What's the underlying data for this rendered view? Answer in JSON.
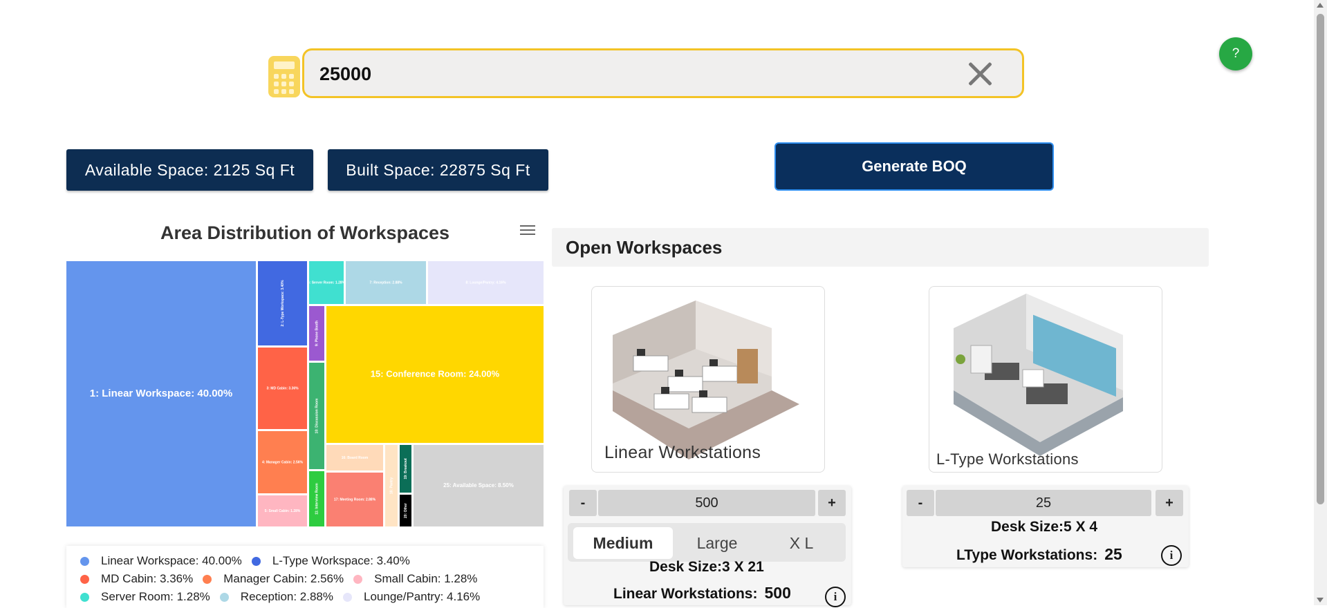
{
  "search": {
    "value": "25000"
  },
  "help": {
    "label": "?"
  },
  "stats": {
    "available": "Available Space: 2125 Sq Ft",
    "built": "Built Space: 22875 Sq Ft"
  },
  "actions": {
    "generate": "Generate BOQ"
  },
  "chart": {
    "title": "Area Distribution of Workspaces"
  },
  "chart_data": {
    "type": "treemap",
    "title": "Area Distribution of Workspaces",
    "series": [
      {
        "label": "1: Linear Workspace: 40.00%",
        "name": "Linear Workspace",
        "value": 40.0,
        "color": "#6495ed"
      },
      {
        "label": "2: L-Type Workspace: 3.40%",
        "name": "L-Type Workspace",
        "value": 3.4,
        "color": "#4169e1"
      },
      {
        "label": "3: MD Cabin: 3.36%",
        "name": "MD Cabin",
        "value": 3.36,
        "color": "#ff6347"
      },
      {
        "label": "4: Manager Cabin: 2.56%",
        "name": "Manager Cabin",
        "value": 2.56,
        "color": "#ff7f50"
      },
      {
        "label": "5: Small Cabin: 1.28%",
        "name": "Small Cabin",
        "value": 1.28,
        "color": "#ffb6c1"
      },
      {
        "label": "6: Server Room: 1.28%",
        "name": "Server Room",
        "value": 1.28,
        "color": "#40e0d0"
      },
      {
        "label": "7: Reception: 2.88%",
        "name": "Reception",
        "value": 2.88,
        "color": "#add8e6"
      },
      {
        "label": "8: Lounge/Pantry: 4.16%",
        "name": "Lounge/Pantry",
        "value": 4.16,
        "color": "#e6e6fa"
      },
      {
        "label": "9: Phone Booth",
        "name": "Phone Booth",
        "value": 0.8,
        "color": "#9b59d0"
      },
      {
        "label": "10: Discussion Room",
        "name": "Discussion Room",
        "value": 1.7,
        "color": "#3cb371"
      },
      {
        "label": "11: Interview Room",
        "name": "Interview Room",
        "value": 1.1,
        "color": "#2ecc40"
      },
      {
        "label": "15: Conference Room: 24.00%",
        "name": "Conference Room",
        "value": 24.0,
        "color": "#ffd700"
      },
      {
        "label": "16: Board Room",
        "name": "Board Room",
        "value": 0.9,
        "color": "#ffdab9"
      },
      {
        "label": "17: Meeting Room: 2.88%",
        "name": "Meeting Room",
        "value": 2.88,
        "color": "#fa8072"
      },
      {
        "label": "18: Pantry",
        "name": "Pantry",
        "value": 0.6,
        "color": "#ffe4c4"
      },
      {
        "label": "19: Breakout",
        "name": "Breakout",
        "value": 0.6,
        "color": "#0b6e57"
      },
      {
        "label": "20: Other",
        "name": "Other",
        "value": 0.4,
        "color": "#000000"
      },
      {
        "label": "25: Available Space: 8.50%",
        "name": "Available Space",
        "value": 8.5,
        "color": "#d3d3d3"
      }
    ],
    "legend": [
      {
        "text": "Linear Workspace: 40.00%",
        "color": "#6495ed"
      },
      {
        "text": "L-Type Workspace: 3.40%",
        "color": "#4169e1"
      },
      {
        "text": "MD Cabin: 3.36%",
        "color": "#ff6347"
      },
      {
        "text": "Manager Cabin: 2.56%",
        "color": "#ff7f50"
      },
      {
        "text": "Small Cabin: 1.28%",
        "color": "#ffb6c1"
      },
      {
        "text": "Server Room: 1.28%",
        "color": "#40e0d0"
      },
      {
        "text": "Reception: 2.88%",
        "color": "#add8e6"
      },
      {
        "text": "Lounge/Pantry: 4.16%",
        "color": "#e6e6fa"
      }
    ]
  },
  "panel": {
    "title": "Open Workspaces",
    "linear": {
      "card_label": "Linear Workstations",
      "minus": "-",
      "plus": "+",
      "value": "500",
      "sizes": [
        "Medium",
        "Large",
        "X L"
      ],
      "selected_size": "Medium",
      "desk_size": "Desk Size:3 X 21",
      "count_label": "Linear Workstations:",
      "count": "500"
    },
    "ltype": {
      "card_label": "L-Type Workstations",
      "minus": "-",
      "plus": "+",
      "value": "25",
      "desk_size": "Desk Size:5 X 4",
      "count_label": "LType Workstations:",
      "count": "25"
    },
    "info_symbol": "i"
  },
  "colors": {
    "accent": "#0d2d52",
    "highlight": "#f3c326",
    "help": "#27a844"
  }
}
